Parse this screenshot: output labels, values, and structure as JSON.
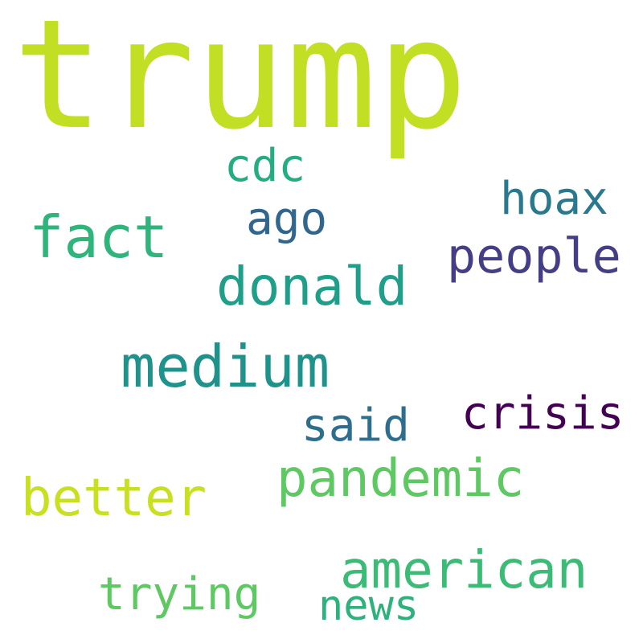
{
  "words": [
    {
      "id": "trump",
      "text": "trump",
      "color": "#c2df23"
    },
    {
      "id": "cdc",
      "text": "cdc",
      "color": "#25ac82"
    },
    {
      "id": "hoax",
      "text": "hoax",
      "color": "#2a788e"
    },
    {
      "id": "fact",
      "text": "fact",
      "color": "#2fb47c"
    },
    {
      "id": "ago",
      "text": "ago",
      "color": "#31668e"
    },
    {
      "id": "people",
      "text": "people",
      "color": "#433e85"
    },
    {
      "id": "donald",
      "text": "donald",
      "color": "#1f9e89"
    },
    {
      "id": "medium",
      "text": "medium",
      "color": "#1f928c"
    },
    {
      "id": "crisis",
      "text": "crisis",
      "color": "#440154"
    },
    {
      "id": "said",
      "text": "said",
      "color": "#2d6e8e"
    },
    {
      "id": "pandemic",
      "text": "pandemic",
      "color": "#5ec962"
    },
    {
      "id": "better",
      "text": "better",
      "color": "#c8e020"
    },
    {
      "id": "american",
      "text": "american",
      "color": "#3bbb75"
    },
    {
      "id": "trying",
      "text": "trying",
      "color": "#5ec962"
    },
    {
      "id": "news",
      "text": "news",
      "color": "#2db27d"
    }
  ]
}
